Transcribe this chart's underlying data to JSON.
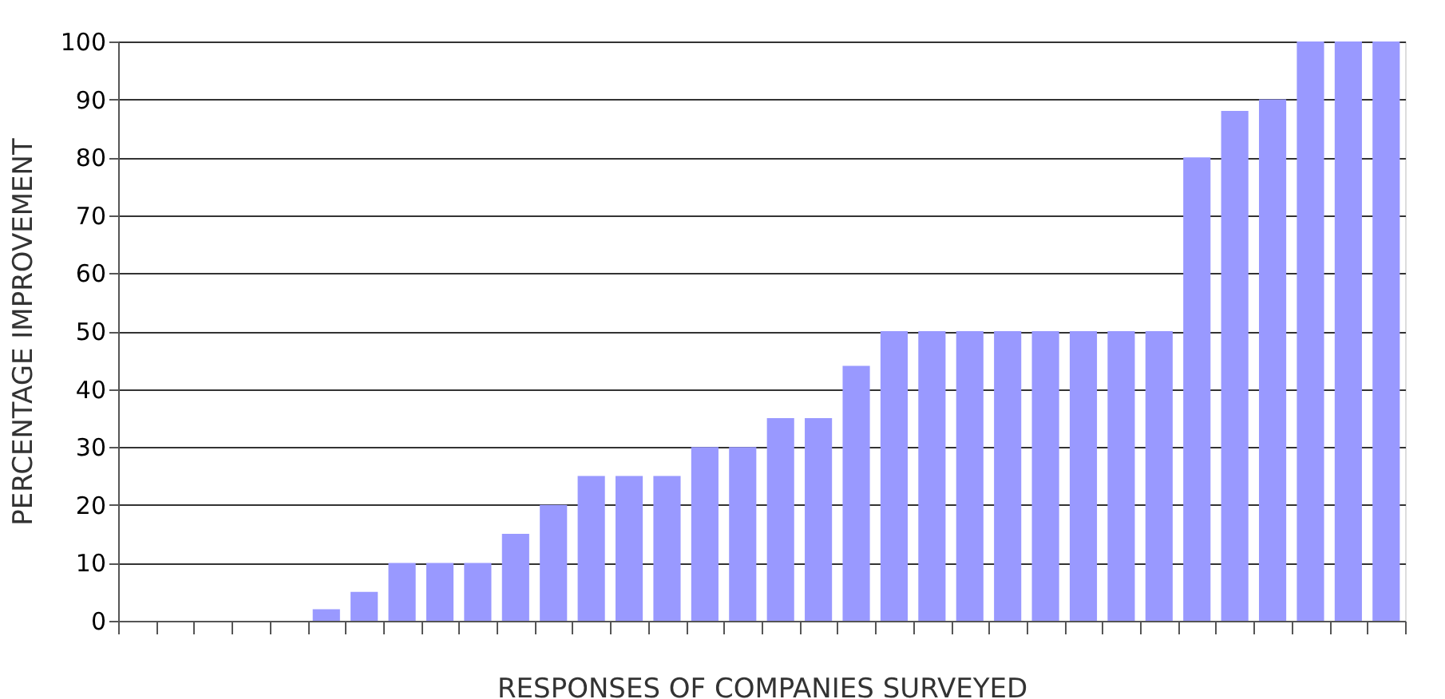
{
  "chart_data": {
    "type": "bar",
    "xlabel": "RESPONSES OF COMPANIES SURVEYED",
    "ylabel": "PERCENTAGE IMPROVEMENT",
    "categories": [
      null,
      null,
      null,
      null,
      null,
      null,
      null,
      null,
      null,
      null,
      null,
      null,
      null,
      null,
      null,
      null,
      null,
      null,
      null,
      null,
      null,
      null,
      null,
      null,
      null,
      null,
      null,
      null,
      null,
      null,
      null,
      null,
      null,
      null
    ],
    "values": [
      0,
      0,
      0,
      0,
      0,
      2,
      5,
      10,
      10,
      10,
      15,
      20,
      25,
      25,
      25,
      30,
      30,
      35,
      35,
      44,
      50,
      50,
      50,
      50,
      50,
      50,
      50,
      50,
      80,
      88,
      90,
      100,
      100,
      100
    ],
    "color": "#9999ff",
    "ylim": [
      0,
      100
    ],
    "yticks": [
      0,
      10,
      20,
      30,
      40,
      50,
      60,
      70,
      80,
      90,
      100
    ],
    "grid": "y",
    "tick_labels": "y"
  }
}
